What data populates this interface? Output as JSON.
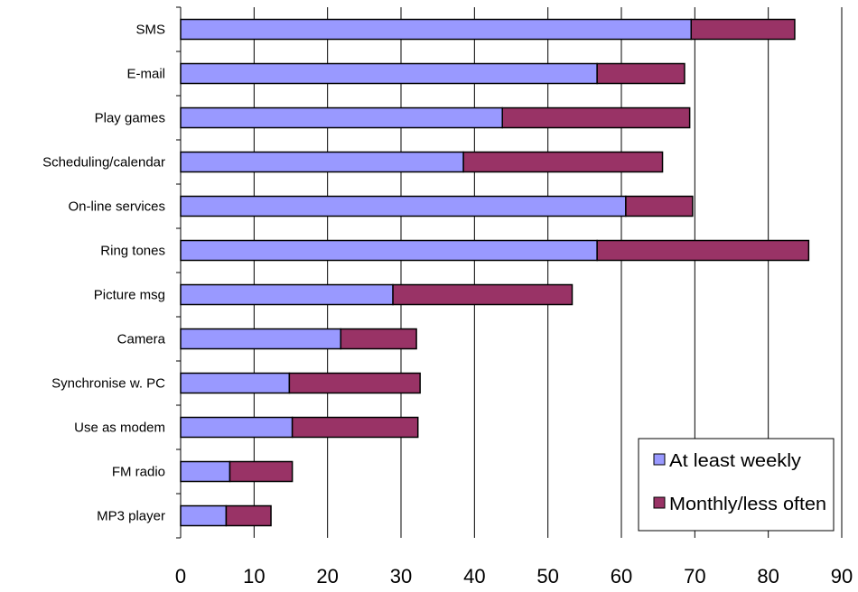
{
  "chart_data": {
    "type": "bar",
    "orientation": "horizontal",
    "stacked": true,
    "categories": [
      "SMS",
      "E-mail",
      "Play games",
      "Scheduling/calendar",
      "On-line services",
      "Ring tones",
      "Picture msg",
      "Camera",
      "Synchronise w. PC",
      "Use as modem",
      "FM radio",
      "MP3 player"
    ],
    "series": [
      {
        "name": "At least weekly",
        "color": "#9999ff",
        "values": [
          69.5,
          56.7,
          43.8,
          38.5,
          60.6,
          56.7,
          28.9,
          21.8,
          14.8,
          15.2,
          6.7,
          6.2
        ]
      },
      {
        "name": "Monthly/less often",
        "color": "#993366",
        "values": [
          14.1,
          11.9,
          25.5,
          27.1,
          9.1,
          28.8,
          24.4,
          10.3,
          17.8,
          17.1,
          8.5,
          6.1
        ]
      }
    ],
    "xlim": [
      0,
      90
    ],
    "x_ticks": [
      "0",
      "10",
      "20",
      "30",
      "40",
      "50",
      "60",
      "70",
      "80",
      "90"
    ],
    "grid": "vertical",
    "legend_position": "bottom-right"
  }
}
